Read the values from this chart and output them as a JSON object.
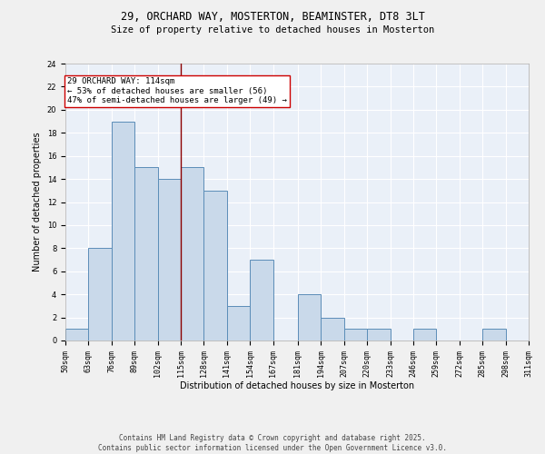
{
  "title_line1": "29, ORCHARD WAY, MOSTERTON, BEAMINSTER, DT8 3LT",
  "title_line2": "Size of property relative to detached houses in Mosterton",
  "xlabel": "Distribution of detached houses by size in Mosterton",
  "ylabel": "Number of detached properties",
  "bin_edges": [
    50,
    63,
    76,
    89,
    102,
    115,
    128,
    141,
    154,
    167,
    181,
    194,
    207,
    220,
    233,
    246,
    259,
    272,
    285,
    298,
    311
  ],
  "counts": [
    1,
    8,
    19,
    15,
    14,
    15,
    13,
    3,
    7,
    0,
    4,
    2,
    1,
    1,
    0,
    1,
    0,
    0,
    1,
    0
  ],
  "bar_facecolor": "#c9d9ea",
  "bar_edgecolor": "#5b8db8",
  "background_color": "#eaf0f8",
  "grid_color": "#ffffff",
  "vline_x": 115,
  "vline_color": "#8b0000",
  "annotation_text": "29 ORCHARD WAY: 114sqm\n← 53% of detached houses are smaller (56)\n47% of semi-detached houses are larger (49) →",
  "annotation_box_edgecolor": "#cc0000",
  "annotation_box_facecolor": "#ffffff",
  "ylim": [
    0,
    24
  ],
  "yticks": [
    0,
    2,
    4,
    6,
    8,
    10,
    12,
    14,
    16,
    18,
    20,
    22,
    24
  ],
  "footnote": "Contains HM Land Registry data © Crown copyright and database right 2025.\nContains public sector information licensed under the Open Government Licence v3.0.",
  "title_fontsize": 8.5,
  "subtitle_fontsize": 7.5,
  "axis_label_fontsize": 7,
  "tick_fontsize": 6,
  "annotation_fontsize": 6.5,
  "footnote_fontsize": 5.5
}
